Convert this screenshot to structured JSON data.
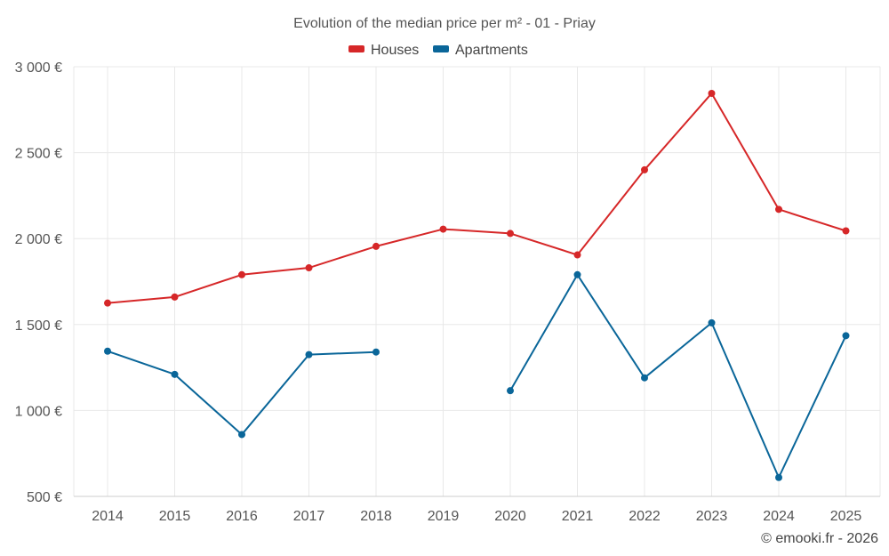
{
  "chart_data": {
    "type": "line",
    "title": "Evolution of the median price per m² - 01 - Priay",
    "categories": [
      "2014",
      "2015",
      "2016",
      "2017",
      "2018",
      "2019",
      "2020",
      "2021",
      "2022",
      "2023",
      "2024",
      "2025"
    ],
    "series": [
      {
        "name": "Houses",
        "color": "#d62728",
        "values": [
          1625,
          1660,
          1790,
          1830,
          1955,
          2055,
          2030,
          1905,
          2400,
          2845,
          2170,
          2045
        ]
      },
      {
        "name": "Apartments",
        "color": "#0a6699",
        "values": [
          1345,
          1210,
          860,
          1325,
          1340,
          null,
          1115,
          1790,
          1190,
          1510,
          610,
          1435
        ]
      }
    ],
    "ylim": [
      500,
      3000
    ],
    "yticks": [
      500,
      1000,
      1500,
      2000,
      2500,
      3000
    ],
    "ytick_labels": [
      "500 €",
      "1 000 €",
      "1 500 €",
      "2 000 €",
      "2 500 €",
      "3 000 €"
    ],
    "xlabel": "",
    "ylabel": "",
    "legend_position": "top-center",
    "grid": true
  },
  "credit": "© emooki.fr - 2026"
}
